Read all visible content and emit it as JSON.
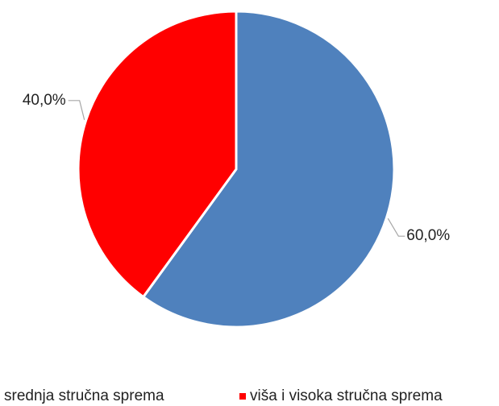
{
  "chart_data": {
    "type": "pie",
    "categories": [
      "srednja stručna sprema",
      "viša i visoka stručna sprema"
    ],
    "values": [
      60,
      40
    ],
    "value_labels": [
      "60,0%",
      "40,0%"
    ],
    "colors": [
      "#4f81bd",
      "#ff0000"
    ],
    "legend": "bottom"
  }
}
